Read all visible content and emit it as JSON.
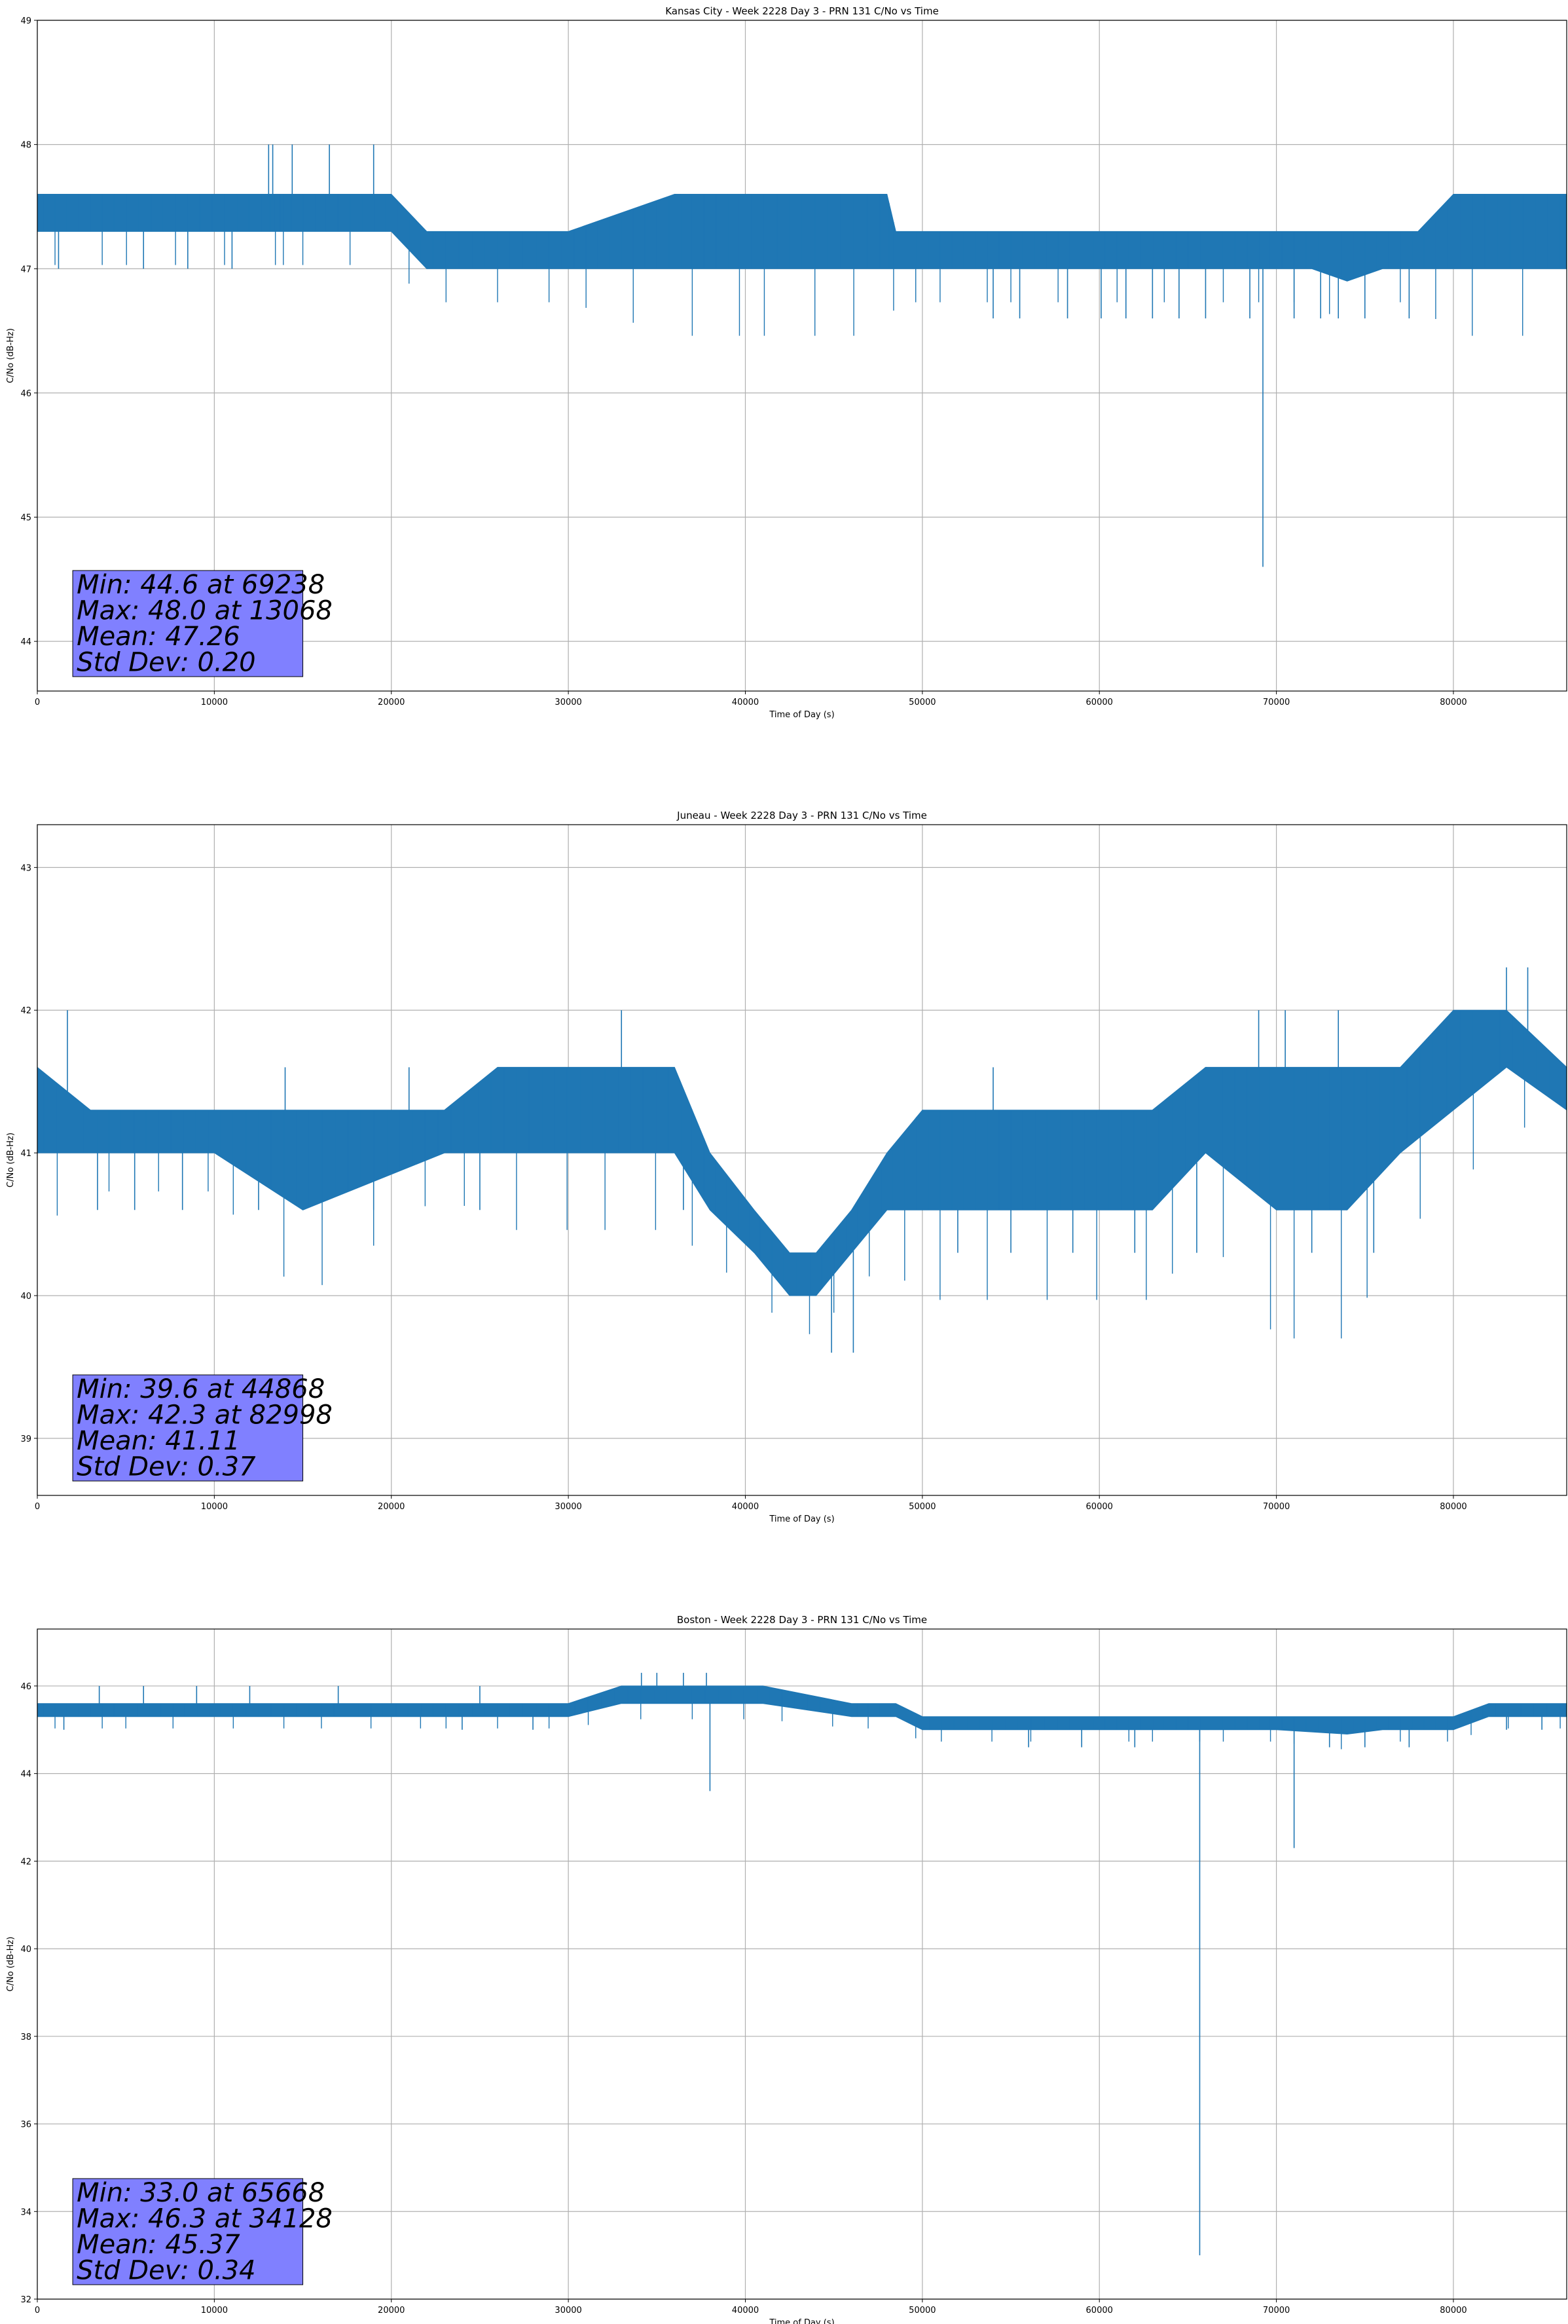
{
  "chart_data": [
    {
      "type": "line",
      "title": "Kansas City - Week 2228 Day 3 - PRN 131 C/No vs Time",
      "xlabel": "Time of Day (s)",
      "ylabel": "C/No (dB-Hz)",
      "xlim": [
        0,
        86400
      ],
      "ylim": [
        43.6,
        49.0
      ],
      "xticks": [
        0,
        10000,
        20000,
        30000,
        40000,
        50000,
        60000,
        70000,
        80000
      ],
      "yticks": [
        44,
        45,
        46,
        47,
        48,
        49
      ],
      "grid": true,
      "series_color": "#1f77b4",
      "stats_box_color": "#8080ff",
      "stats": [
        "Min: 44.6 at 69238",
        "Max: 48.0 at 13068",
        "Mean: 47.26",
        "Std Dev: 0.20"
      ],
      "band": {
        "x": [
          0,
          4000,
          13000,
          13600,
          14000,
          20000,
          22000,
          30000,
          36000,
          40000,
          45000,
          48000,
          48500,
          50000,
          54000,
          60000,
          66000,
          68000,
          70000,
          72000,
          74000,
          76000,
          78000,
          80000,
          86400
        ],
        "low": [
          47.3,
          47.3,
          47.3,
          47.3,
          47.3,
          47.3,
          47.0,
          47.0,
          47.0,
          47.0,
          47.0,
          47.0,
          47.0,
          47.0,
          47.0,
          47.0,
          47.0,
          47.0,
          47.0,
          47.0,
          46.9,
          47.0,
          47.0,
          47.0,
          47.0
        ],
        "high": [
          47.6,
          47.6,
          47.6,
          47.6,
          47.6,
          47.6,
          47.3,
          47.3,
          47.6,
          47.6,
          47.6,
          47.6,
          47.3,
          47.3,
          47.3,
          47.3,
          47.3,
          47.3,
          47.3,
          47.3,
          47.3,
          47.3,
          47.3,
          47.6,
          47.6
        ]
      },
      "spikes": [
        {
          "x": 69238,
          "y": 44.6
        },
        {
          "x": 13068,
          "y": 48.0
        },
        {
          "x": 13300,
          "y": 48.0
        },
        {
          "x": 14400,
          "y": 48.0
        },
        {
          "x": 16500,
          "y": 48.0
        },
        {
          "x": 19000,
          "y": 48.0
        },
        {
          "x": 54000,
          "y": 46.6
        },
        {
          "x": 55500,
          "y": 46.6
        },
        {
          "x": 58200,
          "y": 46.6
        },
        {
          "x": 60100,
          "y": 46.6
        },
        {
          "x": 61500,
          "y": 46.6
        },
        {
          "x": 63000,
          "y": 46.6
        },
        {
          "x": 64500,
          "y": 46.6
        },
        {
          "x": 66000,
          "y": 46.6
        },
        {
          "x": 68500,
          "y": 46.6
        },
        {
          "x": 71000,
          "y": 46.6
        },
        {
          "x": 72500,
          "y": 46.6
        },
        {
          "x": 73500,
          "y": 46.6
        },
        {
          "x": 75000,
          "y": 46.6
        },
        {
          "x": 77500,
          "y": 46.6
        },
        {
          "x": 1200,
          "y": 47.0
        },
        {
          "x": 6000,
          "y": 47.0
        },
        {
          "x": 8500,
          "y": 47.0
        },
        {
          "x": 11000,
          "y": 47.0
        }
      ]
    },
    {
      "type": "line",
      "title": "Juneau - Week 2228 Day 3 - PRN 131 C/No vs Time",
      "xlabel": "Time of Day (s)",
      "ylabel": "C/No (dB-Hz)",
      "xlim": [
        0,
        86400
      ],
      "ylim": [
        38.6,
        43.3
      ],
      "xticks": [
        0,
        10000,
        20000,
        30000,
        40000,
        50000,
        60000,
        70000,
        80000
      ],
      "yticks": [
        39,
        40,
        41,
        42,
        43
      ],
      "grid": true,
      "series_color": "#1f77b4",
      "stats_box_color": "#8080ff",
      "stats": [
        "Min: 39.6 at 44868",
        "Max: 42.3 at 82998",
        "Mean: 41.11",
        "Std Dev: 0.37"
      ],
      "band": {
        "x": [
          0,
          3000,
          10000,
          15000,
          23000,
          26000,
          31000,
          36000,
          38000,
          40500,
          42500,
          44000,
          46000,
          48000,
          50000,
          56000,
          63000,
          66000,
          70000,
          74000,
          77000,
          80000,
          83000,
          86400
        ],
        "low": [
          41.0,
          41.0,
          41.0,
          40.6,
          41.0,
          41.0,
          41.0,
          41.0,
          40.6,
          40.3,
          40.0,
          40.0,
          40.3,
          40.6,
          40.6,
          40.6,
          40.6,
          41.0,
          40.6,
          40.6,
          41.0,
          41.3,
          41.6,
          41.3
        ],
        "high": [
          41.6,
          41.3,
          41.3,
          41.3,
          41.3,
          41.6,
          41.6,
          41.6,
          41.0,
          40.6,
          40.3,
          40.3,
          40.6,
          41.0,
          41.3,
          41.3,
          41.3,
          41.6,
          41.6,
          41.6,
          41.6,
          42.0,
          42.0,
          41.6
        ]
      },
      "spikes": [
        {
          "x": 44868,
          "y": 39.6
        },
        {
          "x": 46100,
          "y": 39.6
        },
        {
          "x": 82998,
          "y": 42.3
        },
        {
          "x": 84200,
          "y": 42.3
        },
        {
          "x": 1700,
          "y": 42.0
        },
        {
          "x": 33000,
          "y": 42.0
        },
        {
          "x": 69000,
          "y": 42.0
        },
        {
          "x": 70500,
          "y": 42.0
        },
        {
          "x": 73500,
          "y": 42.0
        },
        {
          "x": 3400,
          "y": 40.6
        },
        {
          "x": 5500,
          "y": 40.6
        },
        {
          "x": 8200,
          "y": 40.6
        },
        {
          "x": 12500,
          "y": 40.6
        },
        {
          "x": 19000,
          "y": 40.6
        },
        {
          "x": 25000,
          "y": 40.6
        },
        {
          "x": 36500,
          "y": 40.6
        },
        {
          "x": 52000,
          "y": 40.3
        },
        {
          "x": 55000,
          "y": 40.3
        },
        {
          "x": 58500,
          "y": 40.3
        },
        {
          "x": 62000,
          "y": 40.3
        },
        {
          "x": 65500,
          "y": 40.3
        },
        {
          "x": 72000,
          "y": 40.3
        },
        {
          "x": 75500,
          "y": 40.3
        },
        {
          "x": 14000,
          "y": 41.6
        },
        {
          "x": 21000,
          "y": 41.6
        },
        {
          "x": 54000,
          "y": 41.6
        }
      ]
    },
    {
      "type": "line",
      "title": "Boston - Week 2228 Day 3 - PRN 131 C/No vs Time",
      "xlabel": "Time of Day (s)",
      "ylabel": "C/No (dB-Hz)",
      "xlim": [
        0,
        86400
      ],
      "ylim": [
        32.0,
        47.3
      ],
      "xticks": [
        0,
        10000,
        20000,
        30000,
        40000,
        50000,
        60000,
        70000,
        80000
      ],
      "yticks": [
        32,
        34,
        36,
        38,
        40,
        42,
        44,
        46
      ],
      "grid": true,
      "series_color": "#1f77b4",
      "stats_box_color": "#8080ff",
      "stats": [
        "Min: 33.0 at 65668",
        "Max: 46.3 at 34128",
        "Mean: 45.37",
        "Std Dev: 0.34"
      ],
      "band": {
        "x": [
          0,
          4000,
          10000,
          15000,
          22000,
          30000,
          33000,
          41000,
          46000,
          48500,
          50000,
          55000,
          58000,
          62000,
          66000,
          70000,
          74000,
          76000,
          80000,
          82000,
          86400
        ],
        "low": [
          45.3,
          45.3,
          45.3,
          45.3,
          45.3,
          45.3,
          45.6,
          45.6,
          45.3,
          45.3,
          45.0,
          45.0,
          45.0,
          45.0,
          45.0,
          45.0,
          44.9,
          45.0,
          45.0,
          45.3,
          45.3
        ],
        "high": [
          45.6,
          45.6,
          45.6,
          45.6,
          45.6,
          45.6,
          46.0,
          46.0,
          45.6,
          45.6,
          45.3,
          45.3,
          45.3,
          45.3,
          45.3,
          45.3,
          45.3,
          45.3,
          45.3,
          45.6,
          45.6
        ]
      },
      "spikes": [
        {
          "x": 65668,
          "y": 33.0
        },
        {
          "x": 38000,
          "y": 43.6
        },
        {
          "x": 71000,
          "y": 42.3
        },
        {
          "x": 34128,
          "y": 46.3
        },
        {
          "x": 35000,
          "y": 46.3
        },
        {
          "x": 36500,
          "y": 46.3
        },
        {
          "x": 37800,
          "y": 46.3
        },
        {
          "x": 3500,
          "y": 46.0
        },
        {
          "x": 6000,
          "y": 46.0
        },
        {
          "x": 9000,
          "y": 46.0
        },
        {
          "x": 12000,
          "y": 46.0
        },
        {
          "x": 17000,
          "y": 46.0
        },
        {
          "x": 25000,
          "y": 46.0
        },
        {
          "x": 1500,
          "y": 45.0
        },
        {
          "x": 24000,
          "y": 45.0
        },
        {
          "x": 28000,
          "y": 45.0
        },
        {
          "x": 56000,
          "y": 44.6
        },
        {
          "x": 59000,
          "y": 44.6
        },
        {
          "x": 62000,
          "y": 44.6
        },
        {
          "x": 73000,
          "y": 44.6
        },
        {
          "x": 75000,
          "y": 44.6
        },
        {
          "x": 77500,
          "y": 44.6
        },
        {
          "x": 83000,
          "y": 45.0
        },
        {
          "x": 85000,
          "y": 45.0
        }
      ]
    }
  ]
}
